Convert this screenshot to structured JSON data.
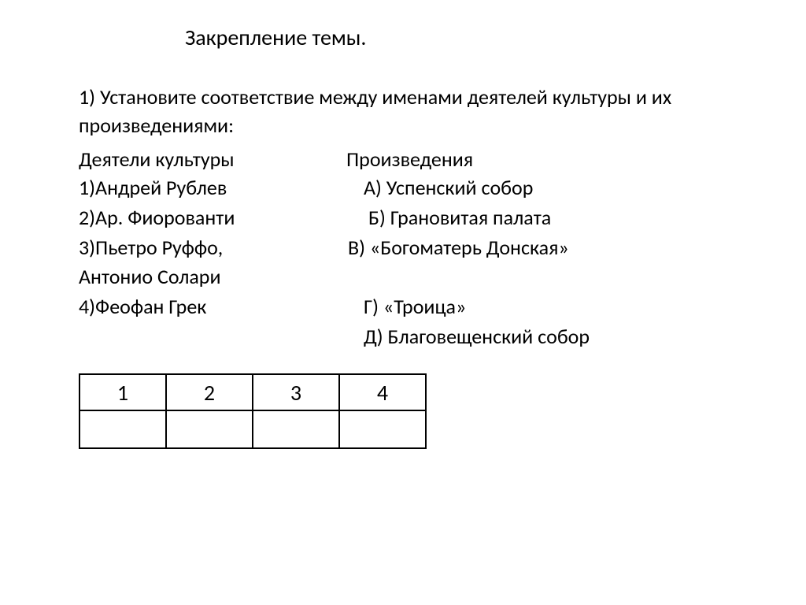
{
  "title": "Закрепление темы.",
  "task_text": "1) Установите соответствие между именами деятелей культуры и их произведениями:",
  "columns": {
    "left_header": "Деятели культуры",
    "right_header": "Произведения"
  },
  "rows": [
    {
      "left": "1)Андрей Рублев",
      "right": "А) Успенский собор",
      "right_indent": "col-right-indent-1"
    },
    {
      "left": "2)Ар. Фиорованти",
      "right": "Б) Грановитая палата",
      "right_indent": "col-right-indent-2"
    },
    {
      "left": "3)Пьетро Руффо,",
      "right": "В) «Богоматерь Донская»",
      "right_indent": "col-right-indent-0"
    },
    {
      "left": "Антонио Солари",
      "right": "",
      "right_indent": ""
    },
    {
      "left": "4)Феофан Грек",
      "right": "Г) «Троица»",
      "right_indent": "col-right-indent-1"
    },
    {
      "left": "",
      "right": "Д) Благовещенский собор",
      "right_indent": "col-right-indent-1"
    }
  ],
  "answer_table": {
    "headers": [
      "1",
      "2",
      "3",
      "4"
    ],
    "answers": [
      "",
      "",
      "",
      ""
    ]
  },
  "colors": {
    "background": "#ffffff",
    "text": "#000000",
    "border": "#000000"
  },
  "fonts": {
    "family": "Calibri, Arial, sans-serif",
    "title_size": 28,
    "body_size": 26,
    "table_size": 28
  }
}
